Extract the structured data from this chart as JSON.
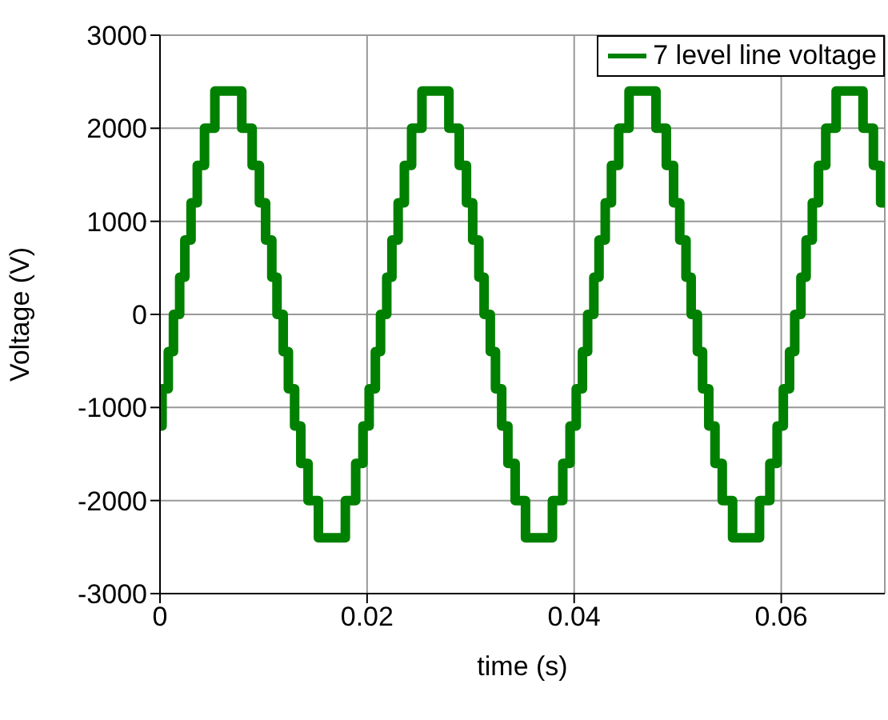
{
  "chart_data": {
    "type": "step",
    "xlabel": "time (s)",
    "ylabel": "Voltage (V)",
    "xlim": [
      0,
      0.07
    ],
    "xticks": [
      0,
      0.02,
      0.04,
      0.06
    ],
    "ylim": [
      -3000,
      3000
    ],
    "yticks": [
      -3000,
      -2000,
      -1000,
      0,
      1000,
      2000,
      3000
    ],
    "grid": true,
    "legend": "top right",
    "series": [
      {
        "name": "7 level line voltage",
        "color": "#008000",
        "x": [
          0,
          0.0002,
          0.0008,
          0.0013,
          0.0019,
          0.0024,
          0.003,
          0.0036,
          0.0043,
          0.0053,
          0.0079,
          0.0089,
          0.0096,
          0.0102,
          0.0108,
          0.0113,
          0.0119,
          0.0124,
          0.013,
          0.0136,
          0.0143,
          0.0153,
          0.0179,
          0.0189,
          0.0196,
          0.0202,
          0.0208,
          0.0213,
          0.0219,
          0.0224,
          0.023,
          0.0236,
          0.0243,
          0.0253,
          0.0279,
          0.0289,
          0.0296,
          0.0302,
          0.0308,
          0.0313,
          0.0319,
          0.0324,
          0.033,
          0.0336,
          0.0343,
          0.0353,
          0.0379,
          0.0389,
          0.0396,
          0.0402,
          0.0408,
          0.0413,
          0.0419,
          0.0424,
          0.043,
          0.0436,
          0.0443,
          0.0453,
          0.0479,
          0.0489,
          0.0496,
          0.0502,
          0.0508,
          0.0513,
          0.0519,
          0.0524,
          0.053,
          0.0536,
          0.0543,
          0.0553,
          0.0579,
          0.0589,
          0.0596,
          0.0602,
          0.0608,
          0.0613,
          0.0619,
          0.0624,
          0.063,
          0.0636,
          0.0643,
          0.0653,
          0.0679,
          0.0689,
          0.0696,
          0.07
        ],
        "values": [
          -1200,
          -800,
          -400,
          0,
          400,
          800,
          1200,
          1600,
          2000,
          2400,
          2000,
          1600,
          1200,
          800,
          400,
          0,
          -400,
          -800,
          -1200,
          -1600,
          -2000,
          -2400,
          -2000,
          -1600,
          -1200,
          -800,
          -400,
          0,
          400,
          800,
          1200,
          1600,
          2000,
          2400,
          2000,
          1600,
          1200,
          800,
          400,
          0,
          -400,
          -800,
          -1200,
          -1600,
          -2000,
          -2400,
          -2000,
          -1600,
          -1200,
          -800,
          -400,
          0,
          400,
          800,
          1200,
          1600,
          2000,
          2400,
          2000,
          1600,
          1200,
          800,
          400,
          0,
          -400,
          -800,
          -1200,
          -1600,
          -2000,
          -2400,
          -2000,
          -1600,
          -1200,
          -800,
          -400,
          0,
          400,
          800,
          1200,
          1600,
          2000,
          2400,
          2000,
          1600,
          1200,
          1200
        ]
      }
    ]
  }
}
